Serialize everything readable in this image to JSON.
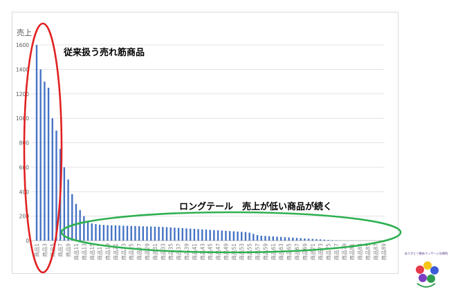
{
  "chart_data": {
    "type": "bar",
    "ylabel": "売上",
    "ylim": [
      0,
      1600
    ],
    "yticks": [
      0,
      200,
      400,
      600,
      800,
      1000,
      1200,
      1400,
      1600
    ],
    "tick_labels": [
      "0",
      "200",
      "400",
      "600",
      "800",
      "1000",
      "1200",
      "1400",
      "1600"
    ],
    "grid": true,
    "category_prefix": "商品",
    "category_labels": [
      "商品1",
      "商品3",
      "商品5",
      "商品7",
      "商品9",
      "商品11",
      "商品13",
      "商品15",
      "商品17",
      "商品19",
      "商品21",
      "商品23",
      "商品25",
      "商品27",
      "商品29",
      "商品31",
      "商品33",
      "商品35",
      "商品37",
      "商品39",
      "商品41",
      "商品43",
      "商品45",
      "商品47",
      "商品49",
      "商品51",
      "商品53",
      "商品55",
      "商品57",
      "商品59",
      "商品61",
      "商品63",
      "商品65",
      "商品67",
      "商品69",
      "商品71",
      "商品73",
      "商品75",
      "商品77",
      "商品79",
      "商品81",
      "商品83",
      "商品85",
      "商品87",
      "商品89"
    ],
    "values": [
      1600,
      1400,
      1300,
      1250,
      1000,
      900,
      750,
      600,
      500,
      380,
      300,
      250,
      200,
      150,
      140,
      135,
      130,
      128,
      126,
      125,
      124,
      123,
      122,
      121,
      120,
      119,
      118,
      117,
      116,
      115,
      114,
      113,
      112,
      110,
      108,
      106,
      104,
      102,
      100,
      98,
      96,
      94,
      92,
      90,
      88,
      86,
      84,
      82,
      80,
      78,
      76,
      74,
      72,
      70,
      65,
      55,
      45,
      40,
      38,
      36,
      34,
      32,
      30,
      28,
      26,
      24,
      22,
      20,
      18,
      16,
      14,
      12,
      10,
      8,
      6,
      4,
      3,
      2,
      1,
      1,
      1,
      0,
      0,
      0,
      0,
      0,
      0,
      0,
      0
    ],
    "bar_color": "#4472c4",
    "annotations": [
      {
        "text": "従来扱う売れ筋商品",
        "shape_color": "#e02020"
      },
      {
        "text": "ロングテール　売上が低い商品が続く",
        "shape_color": "#2eb050"
      }
    ]
  },
  "logo": {
    "text": "ありがとう整体マッサージ治療院"
  }
}
